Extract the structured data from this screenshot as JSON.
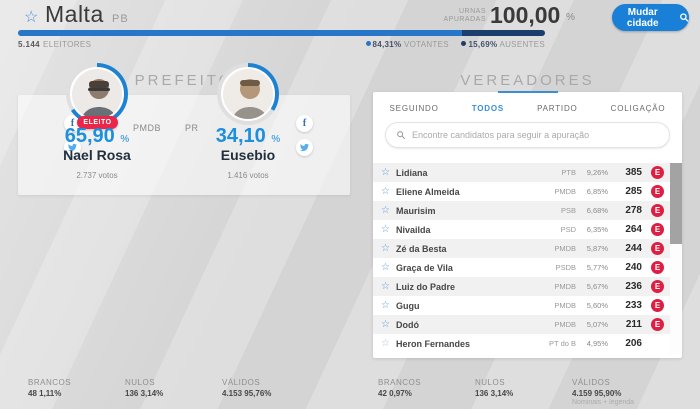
{
  "header": {
    "city": "Malta",
    "state": "PB",
    "urnas_label_1": "URNAS",
    "urnas_label_2": "APURADAS",
    "urnas_value": "100,00",
    "urnas_unit": "%",
    "change_city": "Mudar cidade",
    "electors_value": "5.144",
    "electors_label": "ELEITORES",
    "votantes_pct": "84,31%",
    "votantes_label": "VOTANTES",
    "ausentes_pct": "15,69%",
    "ausentes_label": "AUSENTES",
    "votantes_value": 84.31,
    "ausentes_value": 15.69
  },
  "prefeito": {
    "title": "PREFEITO",
    "pct_unit": "%",
    "candidates": [
      {
        "name": "Nael Rosa",
        "party": "PMDB",
        "pct": "65,90",
        "votes": "2.737 votos",
        "badge": "ELEITO",
        "ring_pct": 65.9
      },
      {
        "name": "Eusebio",
        "party": "PR",
        "pct": "34,10",
        "votes": "1.416 votos",
        "ring_pct": 34.1
      }
    ]
  },
  "vereadores": {
    "title": "VEREADORES",
    "tabs": [
      {
        "label": "SEGUINDO",
        "active": false
      },
      {
        "label": "TODOS",
        "active": true
      },
      {
        "label": "PARTIDO",
        "active": false
      },
      {
        "label": "COLIGAÇÃO",
        "active": false
      }
    ],
    "search_placeholder": "Encontre candidatos para seguir a apuração",
    "badge_label": "E",
    "rows": [
      {
        "name": "Lidiana",
        "party": "PTB",
        "pct": "9,26%",
        "votes": "385",
        "elected": true
      },
      {
        "name": "Eliene Almeida",
        "party": "PMDB",
        "pct": "6,85%",
        "votes": "285",
        "elected": true
      },
      {
        "name": "Maurisim",
        "party": "PSB",
        "pct": "6,68%",
        "votes": "278",
        "elected": true
      },
      {
        "name": "Nivailda",
        "party": "PSD",
        "pct": "6,35%",
        "votes": "264",
        "elected": true
      },
      {
        "name": "Zé da Besta",
        "party": "PMDB",
        "pct": "5,87%",
        "votes": "244",
        "elected": true
      },
      {
        "name": "Graça de Vila",
        "party": "PSDB",
        "pct": "5,77%",
        "votes": "240",
        "elected": true
      },
      {
        "name": "Luiz do Padre",
        "party": "PMDB",
        "pct": "5,67%",
        "votes": "236",
        "elected": true
      },
      {
        "name": "Gugu",
        "party": "PMDB",
        "pct": "5,60%",
        "votes": "233",
        "elected": true
      },
      {
        "name": "Dodó",
        "party": "PMDB",
        "pct": "5,07%",
        "votes": "211",
        "elected": true
      },
      {
        "name": "Heron Fernandes",
        "party": "PT do B",
        "pct": "4,95%",
        "votes": "206",
        "elected": false
      }
    ]
  },
  "footer": {
    "left": {
      "brancos_label": "BRANCOS",
      "brancos": "48 1,11%",
      "nulos_label": "NULOS",
      "nulos": "136 3,14%",
      "validos_label": "VÁLIDOS",
      "validos": "4.153 95,76%"
    },
    "right": {
      "brancos_label": "BRANCOS",
      "brancos": "42 0,97%",
      "nulos_label": "NULOS",
      "nulos": "136 3,14%",
      "validos_label": "VÁLIDOS",
      "validos": "4.159 95,90%",
      "validos_note": "Nominais + legenda"
    }
  },
  "colors": {
    "accent_blue": "#1a7fd6",
    "ring_blue": "#1e82d2",
    "ring_rest": "#dfdfdf",
    "bar_votantes": "#2776c8",
    "bar_ausentes": "#1c3e6d",
    "elected_red": "#e8274b",
    "badge_red": "#dc1f42",
    "pct_blue": "#1d8fdc"
  }
}
